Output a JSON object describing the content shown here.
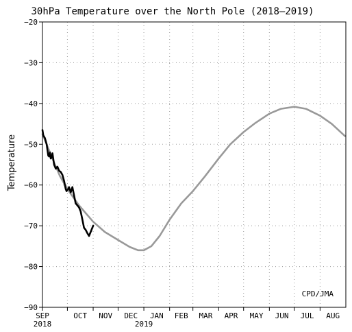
{
  "chart_data": {
    "type": "line",
    "title": "30hPa Temperature over the North Pole (2018–2019)",
    "ylabel": "Temperature",
    "credit": "CPD/JMA",
    "ylim": [
      -90,
      -20
    ],
    "yticks": [
      -90,
      -80,
      -70,
      -60,
      -50,
      -40,
      -30,
      -20
    ],
    "ytick_labels": [
      "−90",
      "−80",
      "−70",
      "−60",
      "−50",
      "−40",
      "−30",
      "−20"
    ],
    "xlim": [
      "2018-09-01",
      "2019-08-31"
    ],
    "month_ticks": [
      {
        "date": "2018-09-01",
        "label": "SEP",
        "year": "2018"
      },
      {
        "date": "2018-10-01",
        "label": "OCT",
        "year": ""
      },
      {
        "date": "2018-11-01",
        "label": "NOV",
        "year": ""
      },
      {
        "date": "2018-12-01",
        "label": "DEC",
        "year": ""
      },
      {
        "date": "2019-01-01",
        "label": "JAN",
        "year": "2019"
      },
      {
        "date": "2019-02-01",
        "label": "FEB",
        "year": ""
      },
      {
        "date": "2019-03-01",
        "label": "MAR",
        "year": ""
      },
      {
        "date": "2019-04-01",
        "label": "APR",
        "year": ""
      },
      {
        "date": "2019-05-01",
        "label": "MAY",
        "year": ""
      },
      {
        "date": "2019-06-01",
        "label": "JUN",
        "year": ""
      },
      {
        "date": "2019-07-01",
        "label": "JUL",
        "year": ""
      },
      {
        "date": "2019-08-01",
        "label": "AUG",
        "year": ""
      }
    ],
    "grid": true,
    "series": [
      {
        "color": "#999999",
        "points": [
          [
            "2018-09-01",
            -47.5
          ],
          [
            "2018-09-08",
            -51.0
          ],
          [
            "2018-09-15",
            -54.5
          ],
          [
            "2018-09-22",
            -57.8
          ],
          [
            "2018-10-01",
            -61.0
          ],
          [
            "2018-10-15",
            -65.0
          ],
          [
            "2018-11-01",
            -69.0
          ],
          [
            "2018-11-15",
            -71.5
          ],
          [
            "2018-12-01",
            -73.5
          ],
          [
            "2018-12-15",
            -75.2
          ],
          [
            "2018-12-25",
            -76.0
          ],
          [
            "2019-01-01",
            -76.0
          ],
          [
            "2019-01-10",
            -75.0
          ],
          [
            "2019-01-20",
            -72.5
          ],
          [
            "2019-02-01",
            -68.5
          ],
          [
            "2019-02-15",
            -64.5
          ],
          [
            "2019-03-01",
            -61.5
          ],
          [
            "2019-03-15",
            -58.0
          ],
          [
            "2019-04-01",
            -53.5
          ],
          [
            "2019-04-15",
            -50.0
          ],
          [
            "2019-05-01",
            -47.0
          ],
          [
            "2019-05-15",
            -44.8
          ],
          [
            "2019-06-01",
            -42.5
          ],
          [
            "2019-06-15",
            -41.3
          ],
          [
            "2019-07-01",
            -40.8
          ],
          [
            "2019-07-15",
            -41.3
          ],
          [
            "2019-08-01",
            -43.0
          ],
          [
            "2019-08-15",
            -45.0
          ],
          [
            "2019-08-31",
            -48.0
          ]
        ]
      },
      {
        "color": "#000000",
        "points": [
          [
            "2018-09-01",
            -46.5
          ],
          [
            "2018-09-02",
            -47.8
          ],
          [
            "2018-09-04",
            -48.5
          ],
          [
            "2018-09-06",
            -50.0
          ],
          [
            "2018-09-08",
            -52.8
          ],
          [
            "2018-09-09",
            -53.0
          ],
          [
            "2018-09-10",
            -52.0
          ],
          [
            "2018-09-11",
            -53.5
          ],
          [
            "2018-09-12",
            -53.2
          ],
          [
            "2018-09-13",
            -52.2
          ],
          [
            "2018-09-15",
            -55.0
          ],
          [
            "2018-09-17",
            -56.0
          ],
          [
            "2018-09-19",
            -55.5
          ],
          [
            "2018-09-21",
            -56.5
          ],
          [
            "2018-09-23",
            -56.8
          ],
          [
            "2018-09-25",
            -57.5
          ],
          [
            "2018-09-27",
            -59.0
          ],
          [
            "2018-09-29",
            -61.0
          ],
          [
            "2018-09-30",
            -61.5
          ],
          [
            "2018-10-02",
            -61.0
          ],
          [
            "2018-10-03",
            -60.5
          ],
          [
            "2018-10-05",
            -61.8
          ],
          [
            "2018-10-07",
            -60.5
          ],
          [
            "2018-10-09",
            -62.5
          ],
          [
            "2018-10-11",
            -64.5
          ],
          [
            "2018-10-13",
            -65.0
          ],
          [
            "2018-10-15",
            -65.5
          ],
          [
            "2018-10-17",
            -66.5
          ],
          [
            "2018-10-19",
            -68.5
          ],
          [
            "2018-10-21",
            -70.5
          ],
          [
            "2018-10-23",
            -71.0
          ],
          [
            "2018-10-25",
            -71.8
          ],
          [
            "2018-10-27",
            -72.5
          ],
          [
            "2018-10-29",
            -71.5
          ],
          [
            "2018-11-01",
            -70.0
          ]
        ]
      }
    ]
  }
}
